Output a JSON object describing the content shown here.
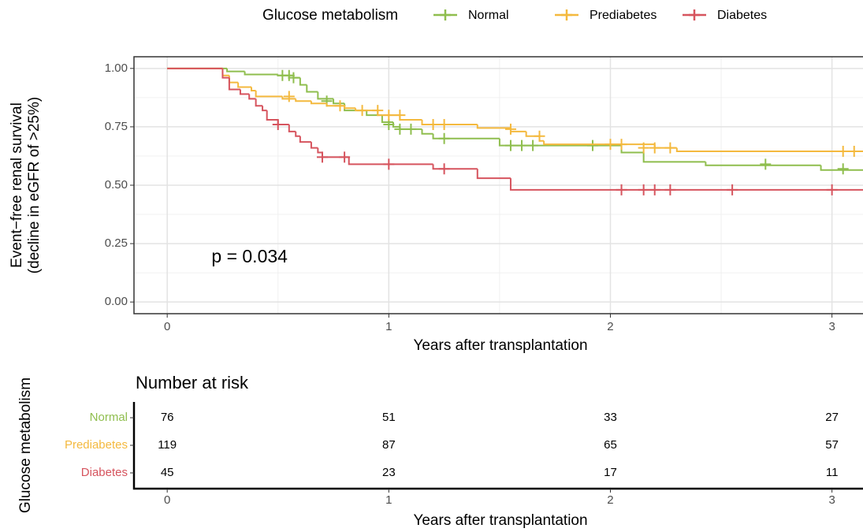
{
  "chart_data": [
    {
      "type": "km",
      "legend_title": "Glucose metabolism",
      "xlabel": "Years after transplantation",
      "ylabel": [
        "Event−free renal survival",
        "(decline in eGFR of >25%)"
      ],
      "annotation": {
        "text": "p = 0.034",
        "x": 0.2,
        "y": 0.19
      },
      "xlim": [
        -0.15,
        3.14
      ],
      "ylim": [
        -0.05,
        1.05
      ],
      "xticks": [
        0,
        1,
        2,
        3
      ],
      "yticks": [
        {
          "value": 0,
          "label": "0.00"
        },
        {
          "value": 0.25,
          "label": "0.25"
        },
        {
          "value": 0.5,
          "label": "0.50"
        },
        {
          "value": 0.75,
          "label": "0.75"
        },
        {
          "value": 1,
          "label": "1.00"
        }
      ],
      "grid": true,
      "legend": "top",
      "series": [
        {
          "name": "Normal",
          "color": "#8fbe4e",
          "x": [
            0,
            0.27,
            0.35,
            0.5,
            0.57,
            0.6,
            0.63,
            0.68,
            0.75,
            0.8,
            0.9,
            0.97,
            1.02,
            1.05,
            1.15,
            1.2,
            1.5,
            2.05,
            2.15,
            2.43,
            2.95
          ],
          "values": [
            1,
            0.987,
            0.974,
            0.97,
            0.96,
            0.93,
            0.9,
            0.87,
            0.85,
            0.82,
            0.8,
            0.77,
            0.75,
            0.74,
            0.72,
            0.7,
            0.67,
            0.64,
            0.6,
            0.585,
            0.565
          ],
          "censor_x": [
            0.52,
            0.55,
            0.57,
            0.72,
            1.0,
            1.05,
            1.1,
            1.25,
            1.55,
            1.6,
            1.65,
            1.92,
            2.7,
            3.05
          ],
          "censor_values": [
            0.97,
            0.97,
            0.96,
            0.86,
            0.76,
            0.74,
            0.74,
            0.7,
            0.67,
            0.67,
            0.67,
            0.67,
            0.59,
            0.57
          ]
        },
        {
          "name": "Prediabetes",
          "color": "#f4b93e",
          "x": [
            0,
            0.25,
            0.28,
            0.32,
            0.38,
            0.4,
            0.52,
            0.58,
            0.65,
            0.72,
            0.8,
            0.85,
            0.95,
            1.05,
            1.15,
            1.4,
            1.55,
            1.62,
            1.68,
            1.7,
            2.2,
            2.3
          ],
          "values": [
            1,
            0.97,
            0.94,
            0.92,
            0.905,
            0.88,
            0.87,
            0.86,
            0.85,
            0.84,
            0.83,
            0.82,
            0.8,
            0.78,
            0.76,
            0.745,
            0.73,
            0.71,
            0.69,
            0.675,
            0.66,
            0.645
          ],
          "censor_x": [
            0.55,
            0.78,
            0.88,
            0.95,
            1.0,
            1.05,
            1.2,
            1.25,
            1.55,
            1.68,
            2.0,
            2.05,
            2.15,
            2.2,
            2.27,
            3.05,
            3.1
          ],
          "censor_values": [
            0.88,
            0.84,
            0.82,
            0.82,
            0.8,
            0.8,
            0.76,
            0.76,
            0.74,
            0.71,
            0.675,
            0.675,
            0.66,
            0.66,
            0.66,
            0.645,
            0.645
          ]
        },
        {
          "name": "Diabetes",
          "color": "#d6545e",
          "x": [
            0,
            0.25,
            0.28,
            0.33,
            0.37,
            0.4,
            0.43,
            0.45,
            0.5,
            0.55,
            0.58,
            0.6,
            0.65,
            0.68,
            0.7,
            0.82,
            1.2,
            1.4,
            1.55
          ],
          "values": [
            1,
            0.96,
            0.91,
            0.89,
            0.87,
            0.84,
            0.82,
            0.78,
            0.76,
            0.73,
            0.71,
            0.685,
            0.66,
            0.64,
            0.62,
            0.59,
            0.57,
            0.53,
            0.48
          ],
          "censor_x": [
            0.5,
            0.7,
            0.8,
            1.0,
            1.25,
            2.05,
            2.15,
            2.2,
            2.27,
            2.55,
            3.0
          ],
          "censor_values": [
            0.76,
            0.62,
            0.62,
            0.59,
            0.57,
            0.48,
            0.48,
            0.48,
            0.48,
            0.48,
            0.48
          ]
        }
      ]
    },
    {
      "type": "risk-table",
      "title": "Number at risk",
      "ylabel": "Glucose metabolism",
      "xlabel": "Years after transplantation",
      "xlim": [
        -0.15,
        3.14
      ],
      "xticks": [
        0,
        1,
        2,
        3
      ],
      "rows": [
        {
          "name": "Normal",
          "color": "#8fbe4e",
          "values": [
            76,
            51,
            33,
            27
          ]
        },
        {
          "name": "Prediabetes",
          "color": "#f4b93e",
          "values": [
            119,
            87,
            65,
            57
          ]
        },
        {
          "name": "Diabetes",
          "color": "#d6545e",
          "values": [
            45,
            23,
            17,
            11
          ]
        }
      ]
    }
  ]
}
